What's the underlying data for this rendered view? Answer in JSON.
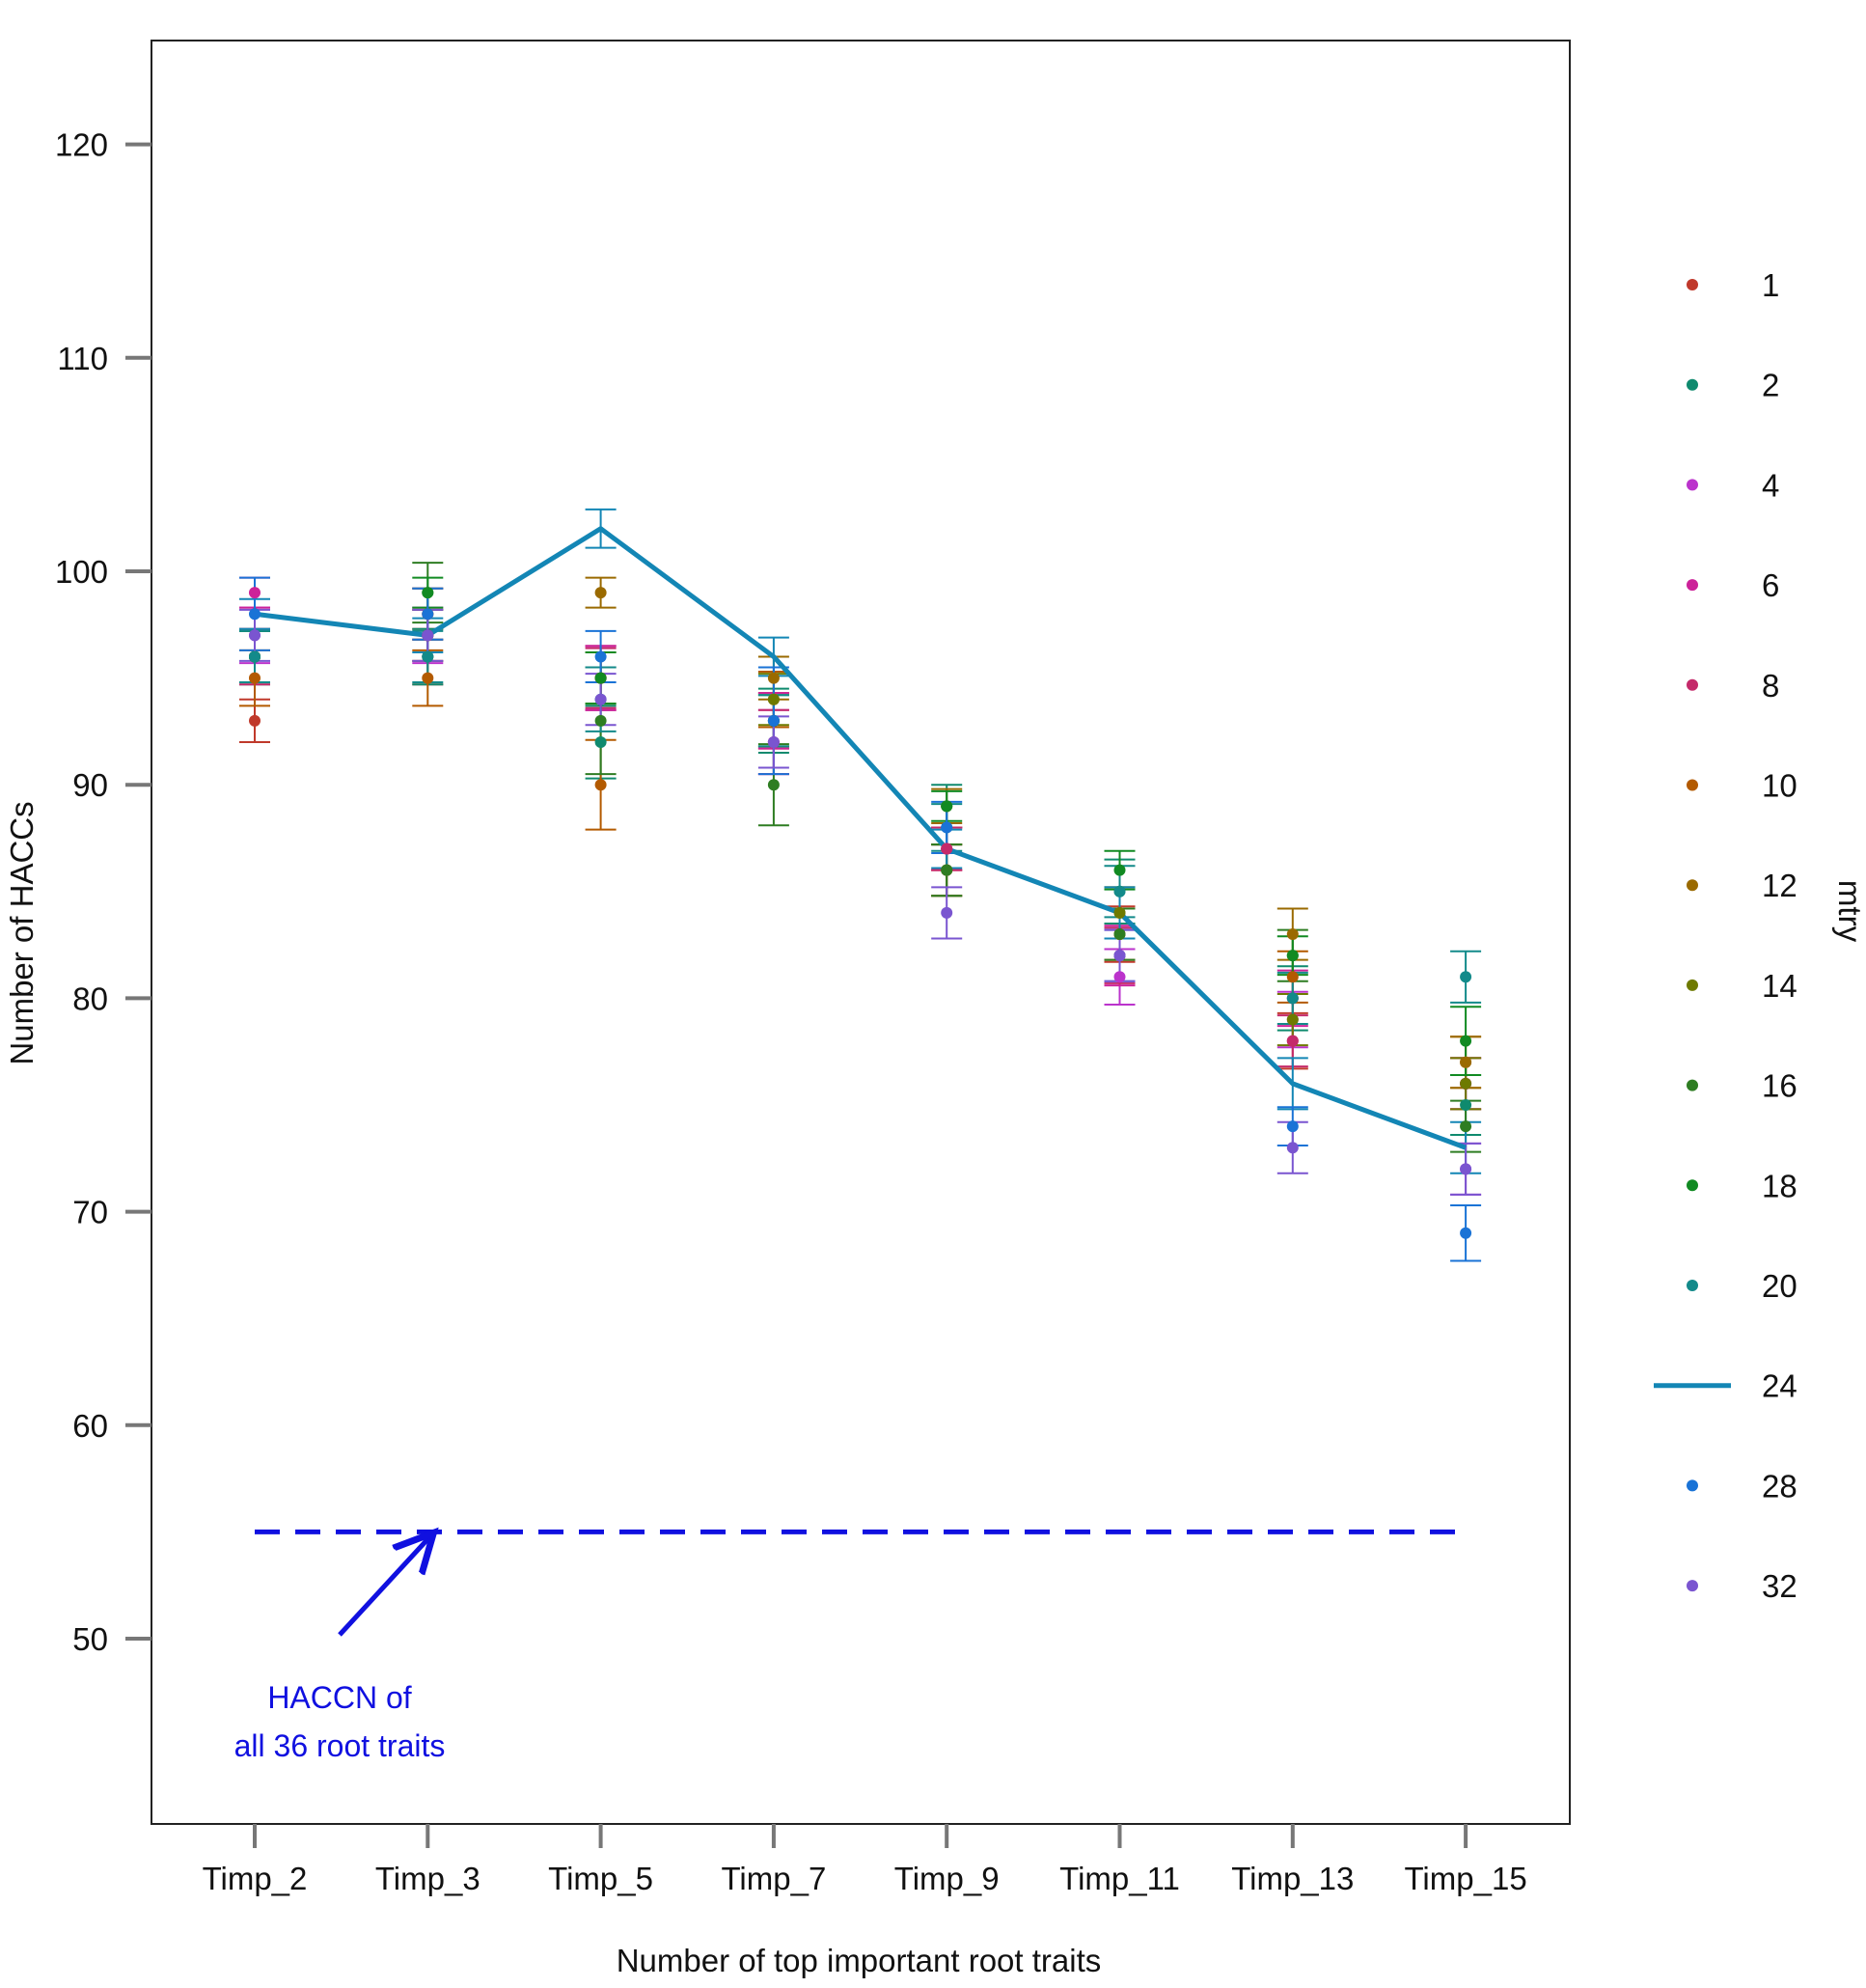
{
  "chart_data": {
    "type": "scatter",
    "title": "",
    "xlabel": "Number of top important root traits",
    "ylabel": "Number of HACCs",
    "categories": [
      "Timp_2",
      "Timp_3",
      "Timp_5",
      "Timp_7",
      "Timp_9",
      "Timp_11",
      "Timp_13",
      "Timp_15"
    ],
    "ylim": [
      41,
      125
    ],
    "yticks": [
      50,
      60,
      70,
      80,
      90,
      100,
      110,
      120
    ],
    "legend": {
      "title": "mtry",
      "position": "right",
      "entries": [
        {
          "label": "1",
          "color": "#c0392b",
          "style": "point"
        },
        {
          "label": "2",
          "color": "#0f8a6e",
          "style": "point"
        },
        {
          "label": "4",
          "color": "#bb33cc",
          "style": "point"
        },
        {
          "label": "6",
          "color": "#cc2299",
          "style": "point"
        },
        {
          "label": "8",
          "color": "#c42a6a",
          "style": "point"
        },
        {
          "label": "10",
          "color": "#b35a00",
          "style": "point"
        },
        {
          "label": "12",
          "color": "#9a6a00",
          "style": "point"
        },
        {
          "label": "14",
          "color": "#6e7a00",
          "style": "point"
        },
        {
          "label": "16",
          "color": "#2e7d22",
          "style": "point"
        },
        {
          "label": "18",
          "color": "#118a22",
          "style": "point"
        },
        {
          "label": "20",
          "color": "#138a8a",
          "style": "point"
        },
        {
          "label": "24",
          "color": "#1386b5",
          "style": "line"
        },
        {
          "label": "28",
          "color": "#1a73d6",
          "style": "point"
        },
        {
          "label": "32",
          "color": "#7a55d0",
          "style": "point"
        }
      ]
    },
    "series": [
      {
        "name": "1",
        "values": [
          93,
          96,
          95,
          93,
          87,
          83,
          78,
          76
        ],
        "errors": [
          1,
          1.3,
          1.5,
          1.3,
          1,
          1.3,
          1.3,
          1.2
        ]
      },
      {
        "name": "2",
        "values": [
          96,
          96,
          92,
          93,
          89,
          85,
          80,
          75
        ],
        "errors": [
          1.3,
          1.3,
          1.7,
          1.5,
          1,
          1.5,
          1.5,
          1.4
        ]
      },
      {
        "name": "4",
        "values": [
          97,
          97,
          95,
          92,
          86,
          81,
          79,
          72
        ],
        "errors": [
          1.3,
          1.3,
          1.5,
          1.5,
          1.2,
          1.3,
          1.3,
          1.2
        ]
      },
      {
        "name": "6",
        "values": [
          99,
          97,
          95,
          93,
          87,
          82,
          80,
          76
        ],
        "errors": [
          0.7,
          1.2,
          1.5,
          1.3,
          1,
          1.4,
          1.3,
          1.2
        ]
      },
      {
        "name": "8",
        "values": [
          96,
          98,
          95,
          92,
          87,
          82,
          78,
          76
        ],
        "errors": [
          1.3,
          1.2,
          1.4,
          1.5,
          1,
          1.3,
          1.2,
          1.2
        ]
      },
      {
        "name": "10",
        "values": [
          95,
          95,
          90,
          94,
          86,
          83,
          81,
          77
        ],
        "errors": [
          1.3,
          1.3,
          2.1,
          1.3,
          1.2,
          1.2,
          1.2,
          1.2
        ]
      },
      {
        "name": "12",
        "values": [
          96,
          98,
          99,
          95,
          89,
          84,
          83,
          77
        ],
        "errors": [
          1.2,
          1.2,
          0.7,
          1.0,
          0.8,
          1.2,
          1.2,
          1.2
        ]
      },
      {
        "name": "14",
        "values": [
          96,
          97,
          95,
          94,
          86,
          84,
          79,
          76
        ],
        "errors": [
          1.2,
          1.2,
          1.2,
          1.2,
          1.2,
          1.2,
          1.2,
          1.2
        ]
      },
      {
        "name": "16",
        "values": [
          96,
          99,
          93,
          90,
          86,
          83,
          82,
          74
        ],
        "errors": [
          1.2,
          1.4,
          2.5,
          1.9,
          1.2,
          1.2,
          1.2,
          1.2
        ]
      },
      {
        "name": "18",
        "values": [
          96,
          99,
          95,
          93,
          89,
          86,
          82,
          78
        ],
        "errors": [
          1.2,
          0.7,
          1.2,
          1.2,
          0.7,
          0.9,
          0.9,
          1.6
        ]
      },
      {
        "name": "20",
        "values": [
          96,
          96,
          94,
          93,
          88,
          85,
          80,
          81
        ],
        "errors": [
          1.2,
          1.2,
          1.5,
          1.2,
          1.1,
          1.2,
          1.2,
          1.2
        ]
      },
      {
        "name": "24",
        "values": [
          98,
          97,
          102,
          96,
          87,
          84,
          76,
          73
        ],
        "errors": [
          0.7,
          0.8,
          0.9,
          0.9,
          0.9,
          1.2,
          1.2,
          1.2
        ]
      },
      {
        "name": "28",
        "values": [
          98,
          98,
          96,
          93,
          88,
          82,
          74,
          69
        ],
        "errors": [
          1.7,
          1.2,
          1.2,
          2.5,
          1.2,
          1.2,
          0.9,
          1.3
        ]
      },
      {
        "name": "32",
        "values": [
          97,
          97,
          94,
          92,
          84,
          82,
          73,
          72
        ],
        "errors": [
          1.2,
          1.2,
          1.2,
          1.2,
          1.2,
          1.2,
          1.2,
          1.2
        ]
      }
    ],
    "reference_line": {
      "value": 55,
      "color": "#1010e0",
      "style": "dashed"
    },
    "annotation": {
      "line1": "HACCN of",
      "line2": "all 36 root traits",
      "color": "#1010e0"
    }
  }
}
